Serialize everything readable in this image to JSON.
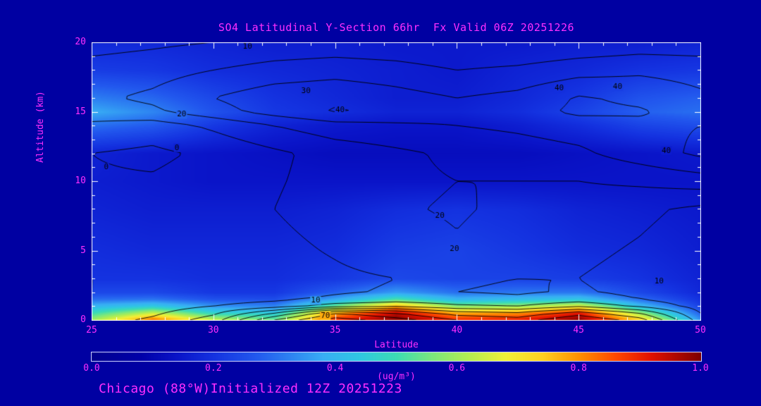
{
  "page": {
    "background": "#0000A2"
  },
  "colors": {
    "text_accent": "#FF2EFF",
    "axis_frame": "#FFFFFF",
    "contour_line": "#000000"
  },
  "header": {
    "title": "SO4 Latitudinal Y-Section 66hr  Fx Valid 06Z 20251226"
  },
  "footer": {
    "text": "Chicago (88°W)Initialized 12Z 20251223"
  },
  "chart_data": {
    "type": "heatmap",
    "title": "SO4 Latitudinal Y-Section 66hr  Fx Valid 06Z 20251226",
    "xlabel": "Latitude",
    "ylabel": "Altitude (km)",
    "units_label": "(ug/m³)",
    "x_range": [
      25,
      50
    ],
    "y_range": [
      0,
      20
    ],
    "x_ticks": [
      25,
      30,
      35,
      40,
      45,
      50
    ],
    "y_ticks": [
      0,
      5,
      10,
      15,
      20
    ],
    "grid": false,
    "legend_position": "bottom-colorbar",
    "colorbar": {
      "range": [
        0.0,
        1.0
      ],
      "tick_labels": [
        "0.0",
        "0.2",
        "0.4",
        "0.6",
        "0.8",
        "1.0"
      ]
    },
    "lats": [
      25,
      27.5,
      30,
      32.5,
      35,
      37.5,
      40,
      42.5,
      45,
      47.5,
      50
    ],
    "alts": [
      0,
      0.5,
      1,
      1.5,
      2,
      3,
      5,
      8,
      10,
      12,
      14,
      15,
      16,
      18,
      20
    ],
    "fill_grid": [
      [
        0.6,
        0.85,
        0.65,
        0.55,
        0.9,
        1.0,
        0.9,
        0.92,
        1.0,
        0.75,
        0.35
      ],
      [
        0.5,
        0.65,
        0.48,
        0.45,
        0.78,
        0.95,
        0.78,
        0.8,
        0.92,
        0.6,
        0.28
      ],
      [
        0.4,
        0.45,
        0.35,
        0.33,
        0.55,
        0.78,
        0.58,
        0.6,
        0.68,
        0.42,
        0.23
      ],
      [
        0.3,
        0.31,
        0.26,
        0.25,
        0.38,
        0.52,
        0.4,
        0.42,
        0.44,
        0.3,
        0.2
      ],
      [
        0.24,
        0.24,
        0.21,
        0.21,
        0.28,
        0.36,
        0.3,
        0.31,
        0.31,
        0.24,
        0.18
      ],
      [
        0.2,
        0.2,
        0.19,
        0.19,
        0.21,
        0.24,
        0.23,
        0.23,
        0.22,
        0.2,
        0.17
      ],
      [
        0.19,
        0.18,
        0.18,
        0.18,
        0.19,
        0.22,
        0.23,
        0.21,
        0.19,
        0.18,
        0.16
      ],
      [
        0.17,
        0.16,
        0.16,
        0.16,
        0.17,
        0.19,
        0.2,
        0.19,
        0.17,
        0.16,
        0.15
      ],
      [
        0.16,
        0.15,
        0.14,
        0.14,
        0.14,
        0.14,
        0.14,
        0.14,
        0.14,
        0.14,
        0.14
      ],
      [
        0.17,
        0.15,
        0.14,
        0.13,
        0.12,
        0.12,
        0.12,
        0.12,
        0.13,
        0.14,
        0.15
      ],
      [
        0.3,
        0.27,
        0.21,
        0.17,
        0.15,
        0.14,
        0.14,
        0.16,
        0.19,
        0.23,
        0.25
      ],
      [
        0.38,
        0.33,
        0.26,
        0.21,
        0.19,
        0.17,
        0.17,
        0.19,
        0.23,
        0.28,
        0.3
      ],
      [
        0.32,
        0.29,
        0.24,
        0.2,
        0.18,
        0.16,
        0.16,
        0.18,
        0.21,
        0.26,
        0.28
      ],
      [
        0.22,
        0.21,
        0.19,
        0.18,
        0.17,
        0.16,
        0.15,
        0.17,
        0.18,
        0.2,
        0.21
      ],
      [
        0.18,
        0.18,
        0.17,
        0.16,
        0.16,
        0.15,
        0.15,
        0.15,
        0.16,
        0.16,
        0.17
      ]
    ],
    "contour_overlay": {
      "levels": [
        0,
        10,
        20,
        30,
        40,
        50,
        60,
        70,
        80
      ],
      "grid": [
        [
          5,
          12,
          25,
          60,
          85,
          75,
          60,
          55,
          70,
          55,
          15
        ],
        [
          3,
          8,
          18,
          40,
          70,
          60,
          45,
          42,
          55,
          40,
          10
        ],
        [
          2,
          5,
          10,
          15,
          25,
          28,
          22,
          20,
          28,
          18,
          6
        ],
        [
          1,
          3,
          6,
          8,
          12,
          15,
          13,
          12,
          15,
          10,
          4
        ],
        [
          0,
          2,
          4,
          6,
          9,
          11,
          10,
          9,
          11,
          8,
          3
        ],
        [
          0,
          1,
          3,
          5,
          8,
          10,
          11,
          10,
          10,
          7,
          3
        ],
        [
          1,
          2,
          4,
          7,
          11,
          16,
          19,
          16,
          12,
          9,
          5
        ],
        [
          2,
          3,
          6,
          10,
          15,
          19,
          21,
          18,
          15,
          12,
          8
        ],
        [
          1,
          1,
          4,
          9,
          14,
          18,
          20,
          20,
          20,
          22,
          25
        ],
        [
          0,
          -2,
          2,
          8,
          14,
          18,
          22,
          25,
          28,
          35,
          42
        ],
        [
          8,
          5,
          12,
          20,
          26,
          28,
          30,
          32,
          35,
          38,
          40
        ],
        [
          15,
          18,
          26,
          34,
          41,
          38,
          34,
          36,
          42,
          41,
          36
        ],
        [
          18,
          22,
          30,
          36,
          38,
          34,
          30,
          33,
          41,
          38,
          32
        ],
        [
          14,
          16,
          20,
          24,
          26,
          24,
          20,
          22,
          26,
          28,
          26
        ],
        [
          6,
          8,
          10,
          12,
          13,
          12,
          10,
          10,
          12,
          14,
          14
        ]
      ],
      "labels": [
        {
          "value": 10,
          "lat": 31.4,
          "alt": 19.7
        },
        {
          "value": 30,
          "lat": 33.8,
          "alt": 16.5
        },
        {
          "value": 40,
          "lat": 35.2,
          "alt": 15.1
        },
        {
          "value": 20,
          "lat": 28.7,
          "alt": 14.8
        },
        {
          "value": 0,
          "lat": 25.6,
          "alt": 11.0
        },
        {
          "value": 0,
          "lat": 28.5,
          "alt": 12.4
        },
        {
          "value": 40,
          "lat": 44.2,
          "alt": 16.7
        },
        {
          "value": 40,
          "lat": 46.6,
          "alt": 16.8
        },
        {
          "value": 40,
          "lat": 48.6,
          "alt": 12.2
        },
        {
          "value": 20,
          "lat": 39.3,
          "alt": 7.5
        },
        {
          "value": 20,
          "lat": 39.9,
          "alt": 5.1
        },
        {
          "value": 10,
          "lat": 48.3,
          "alt": 2.8
        },
        {
          "value": 10,
          "lat": 34.2,
          "alt": 1.4
        },
        {
          "value": 70,
          "lat": 34.6,
          "alt": 0.3
        }
      ]
    },
    "colormap": [
      [
        0.0,
        "#000090"
      ],
      [
        0.08,
        "#0000A8"
      ],
      [
        0.14,
        "#0A14C8"
      ],
      [
        0.2,
        "#1432E0"
      ],
      [
        0.27,
        "#2258EE"
      ],
      [
        0.33,
        "#2E86F2"
      ],
      [
        0.38,
        "#38AEF4"
      ],
      [
        0.44,
        "#2FC8E2"
      ],
      [
        0.5,
        "#3CDCB4"
      ],
      [
        0.56,
        "#7CE87C"
      ],
      [
        0.62,
        "#B4EE50"
      ],
      [
        0.68,
        "#F0F038"
      ],
      [
        0.74,
        "#FFD020"
      ],
      [
        0.8,
        "#FF9000"
      ],
      [
        0.86,
        "#FF4800"
      ],
      [
        0.92,
        "#E01000"
      ],
      [
        1.0,
        "#7E0000"
      ]
    ]
  }
}
